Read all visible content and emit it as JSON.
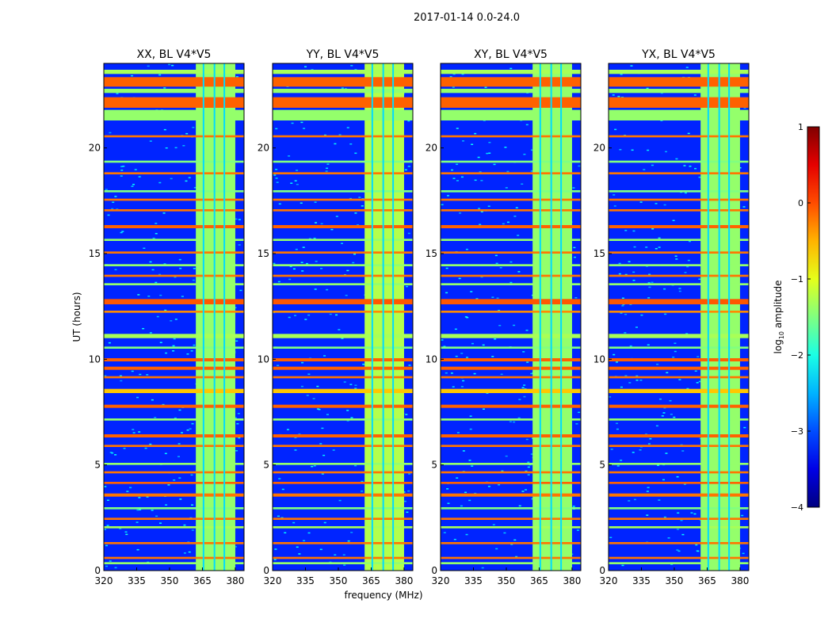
{
  "chart_data": {
    "type": "heatmap",
    "suptitle": "2017-01-14 0.0-24.0",
    "xlabel": "frequency (MHz)",
    "ylabel": "UT (hours)",
    "xlim": [
      320,
      384
    ],
    "ylim": [
      0,
      24
    ],
    "xticks": [
      "320",
      "335",
      "350",
      "365",
      "380"
    ],
    "yticks": [
      "0",
      "5",
      "10",
      "15",
      "20"
    ],
    "panels": [
      {
        "title": "XX, BL V4*V5"
      },
      {
        "title": "YY, BL V4*V5"
      },
      {
        "title": "XY, BL V4*V5"
      },
      {
        "title": "YX, BL V4*V5"
      }
    ],
    "colorbar": {
      "label": "log10 amplitude",
      "label_main": "log",
      "label_sub": "10",
      "label_tail": " amplitude",
      "range": [
        -4,
        1
      ],
      "ticks": [
        "1",
        "0",
        "−1",
        "−2",
        "−3",
        "−4"
      ]
    },
    "background_log_amp": -3.2,
    "rfi_band_mhz": [
      362,
      380
    ],
    "rfi_band_log_amp": -1.4,
    "rfi_gap_lines_mhz": [
      365.5,
      370.5,
      375
    ],
    "time_stripes": [
      {
        "ut": [
          23.5,
          23.7
        ],
        "log_amp": -1.3
      },
      {
        "ut": [
          22.9,
          23.35
        ],
        "log_amp": -0.1
      },
      {
        "ut": [
          22.6,
          22.8
        ],
        "log_amp": -1.4
      },
      {
        "ut": [
          21.9,
          22.4
        ],
        "log_amp": -0.1
      },
      {
        "ut": [
          21.3,
          21.8
        ],
        "log_amp": -1.4
      },
      {
        "ut": [
          20.5,
          20.6
        ],
        "log_amp": -0.2
      },
      {
        "ut": [
          19.3,
          19.4
        ],
        "log_amp": -1.5
      },
      {
        "ut": [
          18.75,
          18.85
        ],
        "log_amp": -0.2
      },
      {
        "ut": [
          17.9,
          18.0
        ],
        "log_amp": -1.5
      },
      {
        "ut": [
          17.5,
          17.6
        ],
        "log_amp": -0.2
      },
      {
        "ut": [
          17.0,
          17.1
        ],
        "log_amp": -0.2
      },
      {
        "ut": [
          16.2,
          16.35
        ],
        "log_amp": -0.1
      },
      {
        "ut": [
          15.6,
          15.7
        ],
        "log_amp": -1.4
      },
      {
        "ut": [
          15.0,
          15.1
        ],
        "log_amp": -0.2
      },
      {
        "ut": [
          14.4,
          14.5
        ],
        "log_amp": -1.4
      },
      {
        "ut": [
          13.9,
          14.0
        ],
        "log_amp": -0.2
      },
      {
        "ut": [
          13.5,
          13.6
        ],
        "log_amp": -1.4
      },
      {
        "ut": [
          12.6,
          12.85
        ],
        "log_amp": -0.05
      },
      {
        "ut": [
          12.2,
          12.3
        ],
        "log_amp": -0.3
      },
      {
        "ut": [
          11.0,
          11.2
        ],
        "log_amp": -1.3
      },
      {
        "ut": [
          10.5,
          10.6
        ],
        "log_amp": -1.5
      },
      {
        "ut": [
          9.9,
          10.05
        ],
        "log_amp": -0.1
      },
      {
        "ut": [
          9.5,
          9.65
        ],
        "log_amp": -0.1
      },
      {
        "ut": [
          9.1,
          9.2
        ],
        "log_amp": -0.2
      },
      {
        "ut": [
          8.4,
          8.6
        ],
        "log_amp": -0.6
      },
      {
        "ut": [
          7.7,
          7.85
        ],
        "log_amp": -0.1
      },
      {
        "ut": [
          7.1,
          7.2
        ],
        "log_amp": -1.4
      },
      {
        "ut": [
          6.3,
          6.45
        ],
        "log_amp": -0.1
      },
      {
        "ut": [
          5.85,
          5.95
        ],
        "log_amp": -0.2
      },
      {
        "ut": [
          5.0,
          5.1
        ],
        "log_amp": -1.4
      },
      {
        "ut": [
          4.6,
          4.7
        ],
        "log_amp": -0.2
      },
      {
        "ut": [
          4.1,
          4.2
        ],
        "log_amp": -0.1
      },
      {
        "ut": [
          3.5,
          3.65
        ],
        "log_amp": -0.2
      },
      {
        "ut": [
          2.9,
          3.0
        ],
        "log_amp": -1.5
      },
      {
        "ut": [
          2.4,
          2.5
        ],
        "log_amp": -0.2
      },
      {
        "ut": [
          2.0,
          2.1
        ],
        "log_amp": -1.3
      },
      {
        "ut": [
          1.25,
          1.35
        ],
        "log_amp": -0.2
      },
      {
        "ut": [
          0.55,
          0.65
        ],
        "log_amp": -0.2
      },
      {
        "ut": [
          0.3,
          0.4
        ],
        "log_amp": -1.4
      }
    ]
  }
}
